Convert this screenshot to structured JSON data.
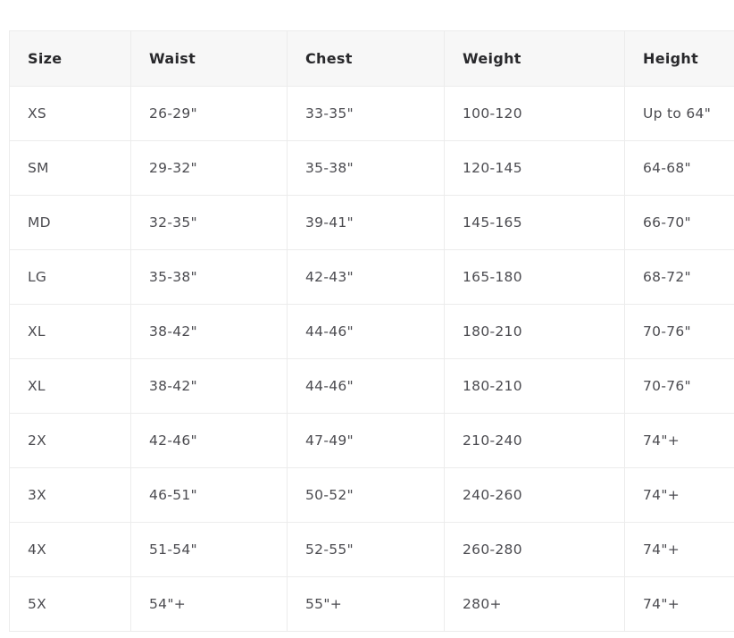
{
  "table": {
    "name": "size-chart",
    "columns": [
      "Size",
      "Waist",
      "Chest",
      "Weight",
      "Height"
    ],
    "rows": [
      [
        "XS",
        "26-29\"",
        "33-35\"",
        "100-120",
        "Up to 64\""
      ],
      [
        "SM",
        "29-32\"",
        "35-38\"",
        "120-145",
        "64-68\""
      ],
      [
        "MD",
        "32-35\"",
        "39-41\"",
        "145-165",
        "66-70\""
      ],
      [
        "LG",
        "35-38\"",
        "42-43\"",
        "165-180",
        "68-72\""
      ],
      [
        "XL",
        "38-42\"",
        "44-46\"",
        "180-210",
        "70-76\""
      ],
      [
        "XL",
        "38-42\"",
        "44-46\"",
        "180-210",
        "70-76\""
      ],
      [
        "2X",
        "42-46\"",
        "47-49\"",
        "210-240",
        "74\"+"
      ],
      [
        "3X",
        "46-51\"",
        "50-52\"",
        "240-260",
        "74\"+"
      ],
      [
        "4X",
        "51-54\"",
        "52-55\"",
        "260-280",
        "74\"+"
      ],
      [
        "5X",
        "54\"+",
        "55\"+",
        "280+",
        "74\"+"
      ]
    ],
    "colors": {
      "header_bg": "#f7f7f7",
      "border": "#ececec",
      "header_text": "#29292c",
      "body_text": "#4b4b50"
    }
  }
}
